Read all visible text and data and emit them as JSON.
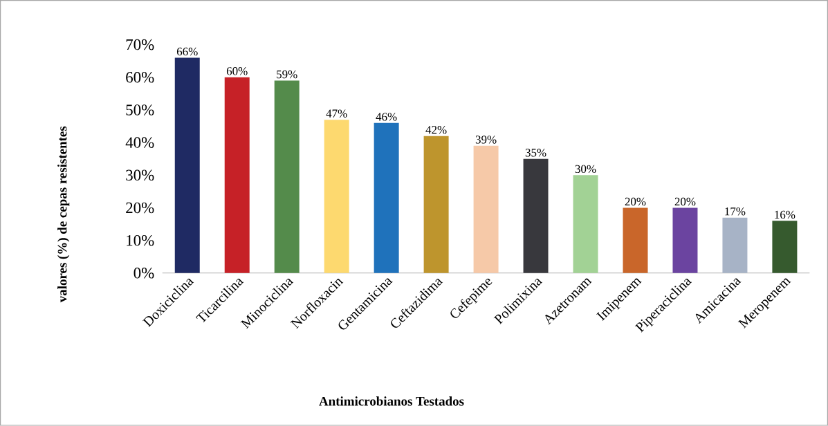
{
  "chart_data": {
    "type": "bar",
    "xlabel": "Antimicrobianos  Testados",
    "ylabel": "valores (%) de cepas resistentes",
    "categories": [
      "Doxiciclina",
      "Ticarcilina",
      "Minociclina",
      "Norfloxacin",
      "Gentamicina",
      "Ceftazidima",
      "Cefepime",
      "Polimixina",
      "Azetronam",
      "Imipenem",
      "Piperaciclina",
      "Amicacina",
      "Meropenem"
    ],
    "values": [
      66,
      60,
      59,
      47,
      46,
      42,
      39,
      35,
      30,
      20,
      20,
      17,
      16
    ],
    "value_labels": [
      "66%",
      "60%",
      "59%",
      "47%",
      "46%",
      "42%",
      "39%",
      "35%",
      "30%",
      "20%",
      "20%",
      "17%",
      "16%"
    ],
    "colors": [
      "#1f2a63",
      "#c62127",
      "#548b4b",
      "#fdd96f",
      "#1f72bb",
      "#be952d",
      "#f6c9a8",
      "#38383d",
      "#a2d295",
      "#c9662a",
      "#6b44a0",
      "#a7b3c6",
      "#365a2e"
    ],
    "ylim": [
      0,
      70
    ],
    "yticks": [
      {
        "value": 0,
        "label": "0%"
      },
      {
        "value": 10,
        "label": "10%"
      },
      {
        "value": 20,
        "label": "20%"
      },
      {
        "value": 30,
        "label": "30%"
      },
      {
        "value": 40,
        "label": "40%"
      },
      {
        "value": 50,
        "label": "50%"
      },
      {
        "value": 60,
        "label": "60%"
      },
      {
        "value": 70,
        "label": "70%"
      }
    ],
    "grid": false
  }
}
